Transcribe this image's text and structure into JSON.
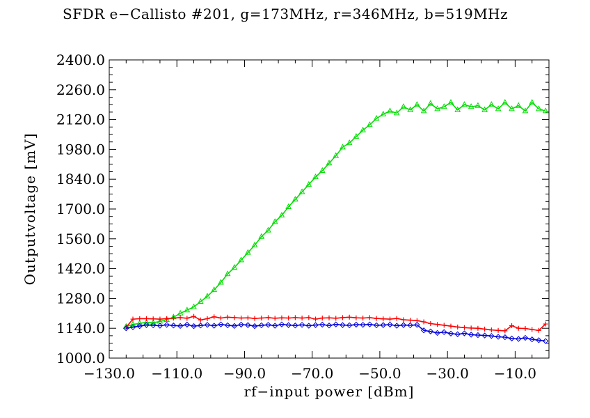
{
  "chart_data": {
    "type": "line",
    "title": "SFDR e−Callisto #201, g=173MHz, r=346MHz, b=519MHz",
    "xlabel": "rf−input power [dBm]",
    "ylabel": "Outputvoltage [mV]",
    "xlim": [
      -130,
      0
    ],
    "ylim": [
      1000,
      2400
    ],
    "x_ticks": [
      "−130.0",
      "−110.0",
      "−90.0",
      "−70.0",
      "−50.0",
      "−30.0",
      "−10.0"
    ],
    "x_tick_values": [
      -130,
      -110,
      -90,
      -70,
      -50,
      -30,
      -10
    ],
    "y_ticks": [
      "1000.0",
      "1140.0",
      "1280.0",
      "1420.0",
      "1560.0",
      "1700.0",
      "1840.0",
      "1980.0",
      "2120.0",
      "2260.0",
      "2400.0"
    ],
    "y_tick_values": [
      1000,
      1140,
      1280,
      1420,
      1560,
      1700,
      1840,
      1980,
      2120,
      2260,
      2400
    ],
    "grid": false,
    "x": [
      -125,
      -123,
      -121,
      -119,
      -117,
      -115,
      -113,
      -111,
      -109,
      -107,
      -105,
      -103,
      -101,
      -99,
      -97,
      -95,
      -93,
      -91,
      -89,
      -87,
      -85,
      -83,
      -81,
      -79,
      -77,
      -75,
      -73,
      -71,
      -69,
      -67,
      -65,
      -63,
      -61,
      -59,
      -57,
      -55,
      -53,
      -51,
      -49,
      -47,
      -45,
      -43,
      -41,
      -39,
      -37,
      -35,
      -33,
      -31,
      -29,
      -27,
      -25,
      -23,
      -21,
      -19,
      -17,
      -15,
      -13,
      -11,
      -9,
      -7,
      -5,
      -3,
      -1
    ],
    "series": [
      {
        "color": "#00dd00",
        "marker": "triangle",
        "values": [
          1148,
          1158,
          1163,
          1168,
          1166,
          1172,
          1180,
          1192,
          1210,
          1225,
          1240,
          1265,
          1290,
          1320,
          1355,
          1395,
          1425,
          1460,
          1495,
          1530,
          1570,
          1600,
          1640,
          1670,
          1710,
          1745,
          1780,
          1815,
          1850,
          1880,
          1915,
          1950,
          1990,
          2010,
          2040,
          2070,
          2095,
          2125,
          2145,
          2160,
          2150,
          2180,
          2165,
          2190,
          2160,
          2195,
          2170,
          2180,
          2200,
          2165,
          2190,
          2180,
          2185,
          2165,
          2190,
          2170,
          2200,
          2170,
          2185,
          2160,
          2200,
          2170,
          2160
        ]
      },
      {
        "color": "#ff0000",
        "marker": "plus",
        "values": [
          1145,
          1183,
          1185,
          1185,
          1184,
          1183,
          1185,
          1188,
          1190,
          1187,
          1196,
          1179,
          1185,
          1194,
          1188,
          1192,
          1190,
          1188,
          1189,
          1186,
          1188,
          1190,
          1187,
          1189,
          1188,
          1190,
          1188,
          1190,
          1183,
          1188,
          1189,
          1187,
          1190,
          1192,
          1189,
          1188,
          1190,
          1186,
          1184,
          1183,
          1186,
          1180,
          1178,
          1176,
          1170,
          1162,
          1158,
          1154,
          1150,
          1146,
          1143,
          1141,
          1140,
          1136,
          1132,
          1130,
          1128,
          1152,
          1140,
          1139,
          1134,
          1130,
          1160
        ]
      },
      {
        "color": "#0000dd",
        "marker": "diamond",
        "values": [
          1140,
          1145,
          1150,
          1155,
          1154,
          1152,
          1156,
          1153,
          1151,
          1157,
          1150,
          1153,
          1156,
          1152,
          1158,
          1154,
          1151,
          1157,
          1155,
          1150,
          1154,
          1156,
          1152,
          1158,
          1155,
          1153,
          1156,
          1152,
          1155,
          1157,
          1153,
          1158,
          1155,
          1154,
          1157,
          1156,
          1158,
          1154,
          1155,
          1157,
          1152,
          1155,
          1154,
          1156,
          1130,
          1125,
          1118,
          1122,
          1115,
          1112,
          1116,
          1110,
          1108,
          1106,
          1104,
          1100,
          1098,
          1092,
          1090,
          1095,
          1088,
          1084,
          1080
        ]
      }
    ]
  }
}
